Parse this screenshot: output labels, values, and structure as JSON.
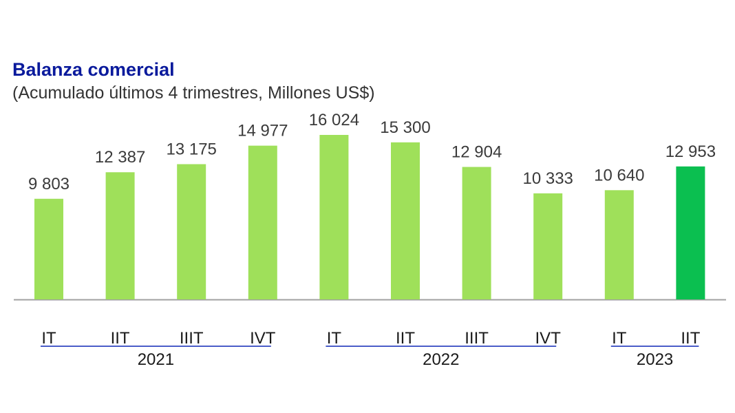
{
  "title": "Balanza comercial",
  "subtitle": "(Acumulado últimos 4 trimestres, Millones US$)",
  "chart_data": {
    "type": "bar",
    "title": "Balanza comercial",
    "subtitle": "(Acumulado últimos 4 trimestres, Millones US$)",
    "categories": [
      "IT",
      "IIT",
      "IIIT",
      "IVT",
      "IT",
      "IIT",
      "IIIT",
      "IVT",
      "IT",
      "IIT"
    ],
    "year_groups": [
      {
        "label": "2021",
        "start": 0,
        "end": 3
      },
      {
        "label": "2022",
        "start": 4,
        "end": 7
      },
      {
        "label": "2023",
        "start": 8,
        "end": 9
      }
    ],
    "values": [
      9803,
      12387,
      13175,
      14977,
      16024,
      15300,
      12904,
      10333,
      10640,
      12953
    ],
    "value_labels": [
      "9 803",
      "12 387",
      "13 175",
      "14 977",
      "16 024",
      "15 300",
      "12 904",
      "10 333",
      "10 640",
      "12 953"
    ],
    "highlight_index": 9,
    "colors": {
      "bar": "#9fe05a",
      "highlight": "#0bbf50",
      "axis": "#a0a0a0",
      "group_line": "#4a5cc8"
    },
    "xlabel": "",
    "ylabel": "",
    "ylim": [
      0,
      16024
    ],
    "grid": false,
    "legend": "none"
  }
}
